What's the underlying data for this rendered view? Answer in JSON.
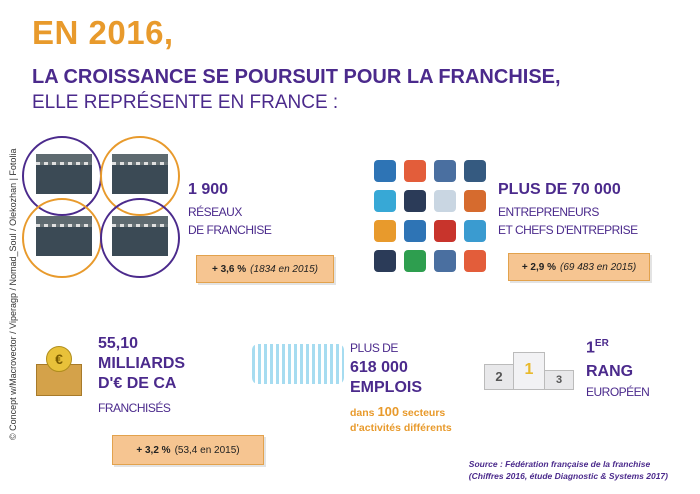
{
  "title": {
    "year": "EN 2016,",
    "line1": "LA CROISSANCE SE POURSUIT POUR LA FRANCHISE,",
    "line2": "ELLE REPRÉSENTE EN FRANCE :"
  },
  "credit": "© Concept w/Macrovector / Viperagp / Nomad_Soul / Olekozhan | Fotolia",
  "networks": {
    "value": "1 900",
    "label1": "RÉSEAUX",
    "label2": "DE FRANCHISE",
    "growth": "+ 3,6 %",
    "previous": "(1834 en 2015)"
  },
  "entrepreneurs": {
    "value": "PLUS DE 70 000",
    "label1": "ENTREPRENEURS",
    "label2": "ET CHEFS D'ENTREPRISE",
    "growth": "+ 2,9 %",
    "previous": "(69 483 en 2015)"
  },
  "revenue": {
    "value1": "55,10",
    "value2": "MILLIARDS",
    "value3": "D'€ DE CA",
    "label": "FRANCHISÉS",
    "growth": "+ 3,2 %",
    "previous": "(53,4 en 2015)"
  },
  "jobs": {
    "prefix": "PLUS DE",
    "value": "618 000",
    "label": "EMPLOIS",
    "sectors_a": "dans",
    "sectors_num": "100",
    "sectors_b": "secteurs",
    "sectors_c": "d'activités différents"
  },
  "rank": {
    "value": "1",
    "suffix": "ER",
    "label1": "RANG",
    "label2": "EUROPÉEN",
    "podium": [
      "2",
      "1",
      "3"
    ]
  },
  "source": {
    "line1": "Source : Fédération française de la franchise",
    "line2": "(Chiffres 2016, étude Diagnostic & Systems 2017)"
  },
  "colors": {
    "purple": "#4b2a8c",
    "orange": "#e89a2c",
    "badge": "#f6c591"
  }
}
